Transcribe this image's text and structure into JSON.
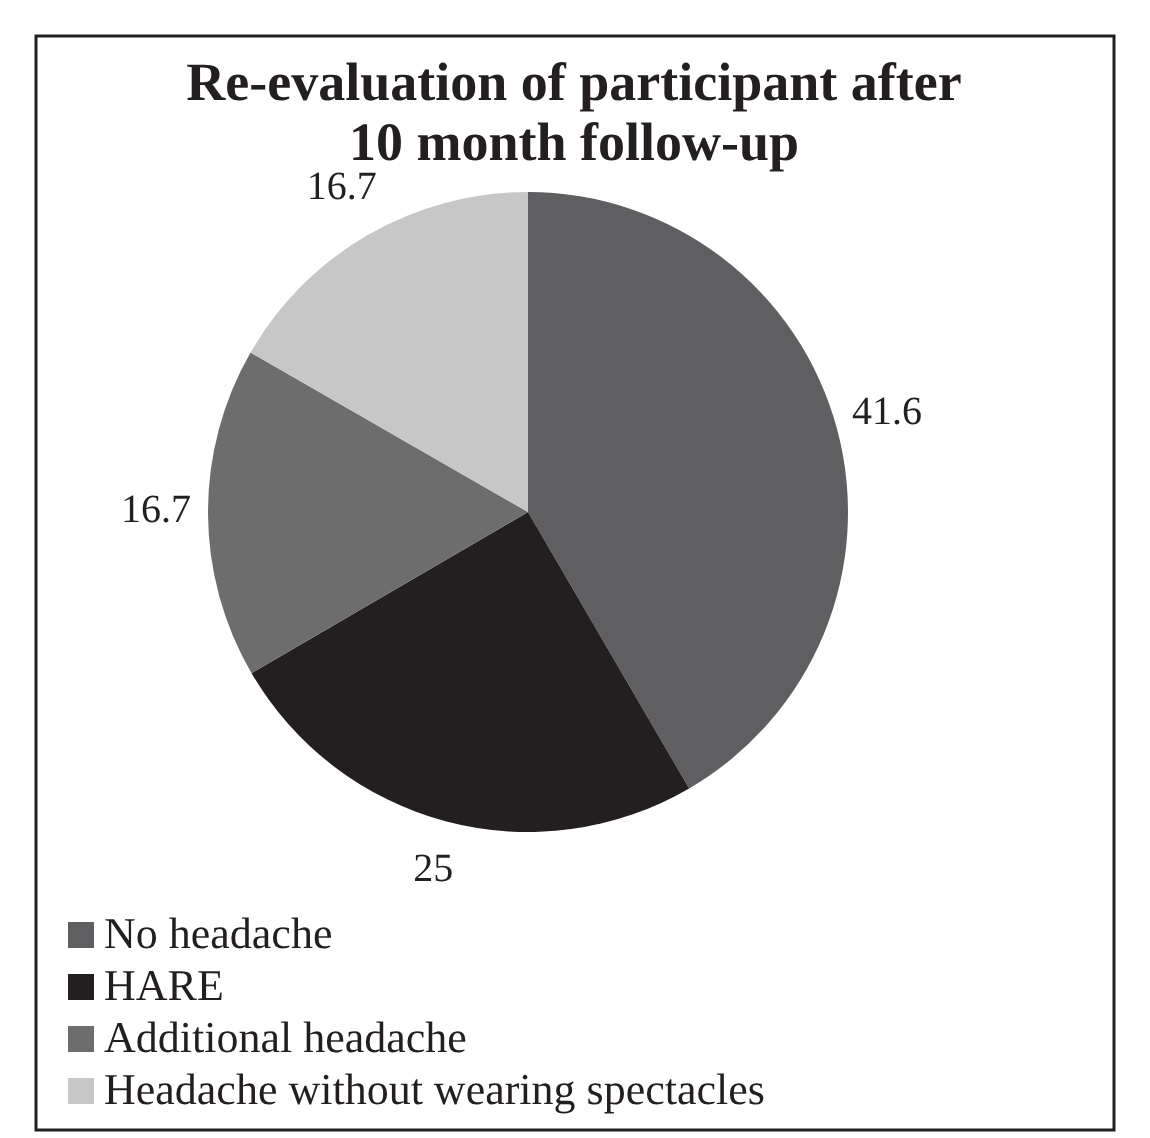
{
  "chart_data": {
    "type": "pie",
    "title": "Re-evaluation of participant after 10 month follow-up",
    "categories": [
      "No headache",
      "HARE",
      "Additional headache",
      "Headache without wearing spectacles"
    ],
    "values": [
      41.6,
      25,
      16.7,
      16.7
    ],
    "colors": [
      "#5f5f61",
      "#231f20",
      "#6d6d6d",
      "#c7c7c7"
    ],
    "data_labels": true,
    "legend": "bottom"
  }
}
